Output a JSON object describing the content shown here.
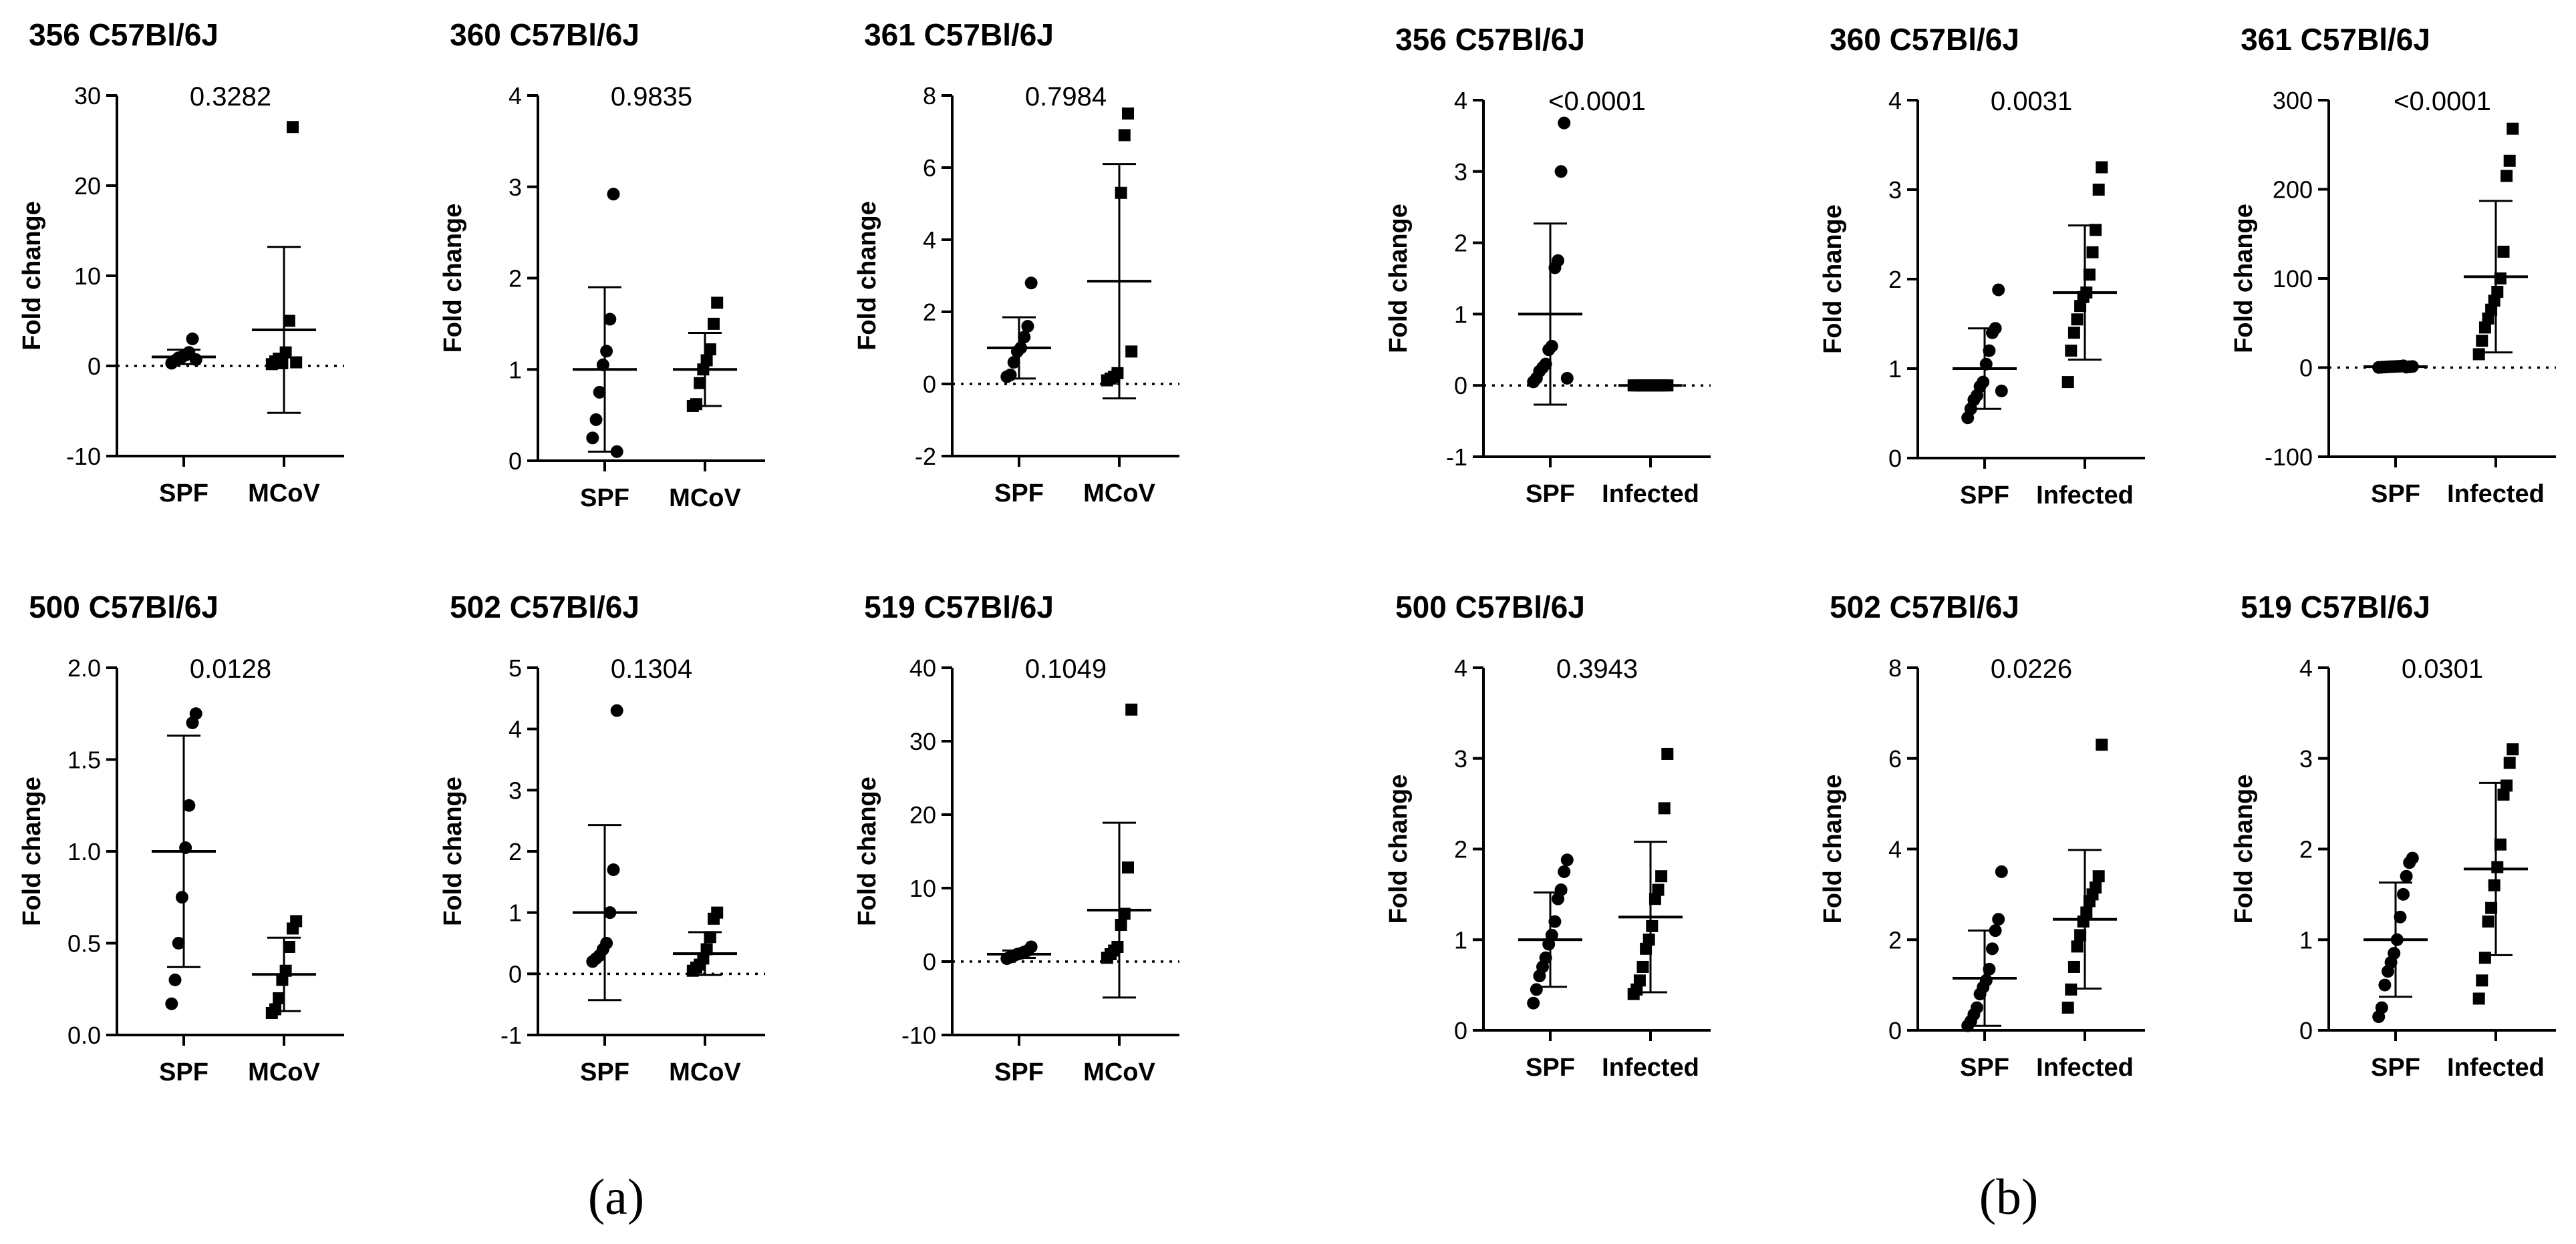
{
  "panel_labels": [
    "(a)",
    "(b)"
  ],
  "chart_data": [
    {
      "panel": "(a)",
      "type": "scatter",
      "title": "356 C57Bl/6J",
      "p_value": "0.3282",
      "ylabel": "Fold change",
      "categories": [
        "SPF",
        "MCoV"
      ],
      "ylim": [
        -10,
        30
      ],
      "yticks": [
        -10,
        0,
        10,
        20,
        30
      ],
      "zero_line": true,
      "groups": [
        {
          "name": "SPF",
          "marker": "circle",
          "mean": 1.0,
          "sd": 0.8,
          "values": [
            0.3,
            0.6,
            0.9,
            1.0,
            1.2,
            1.5,
            3.0,
            0.7
          ]
        },
        {
          "name": "MCoV",
          "marker": "square",
          "mean": 4.0,
          "sd": 9.2,
          "values": [
            0.2,
            0.5,
            0.8,
            0.3,
            1.5,
            5.0,
            26.5,
            0.4
          ]
        }
      ]
    },
    {
      "panel": "(a)",
      "type": "scatter",
      "title": "360 C57Bl/6J",
      "p_value": "0.9835",
      "ylabel": "Fold change",
      "categories": [
        "SPF",
        "MCoV"
      ],
      "ylim": [
        0,
        4
      ],
      "yticks": [
        0,
        1,
        2,
        3,
        4
      ],
      "zero_line": false,
      "groups": [
        {
          "name": "SPF",
          "marker": "circle",
          "mean": 1.0,
          "sd": 0.9,
          "values": [
            0.25,
            0.45,
            0.75,
            1.05,
            1.2,
            1.55,
            2.92,
            0.1
          ]
        },
        {
          "name": "MCoV",
          "marker": "square",
          "mean": 1.0,
          "sd": 0.4,
          "values": [
            0.6,
            0.62,
            0.85,
            1.0,
            1.1,
            1.22,
            1.5,
            1.73
          ]
        }
      ]
    },
    {
      "panel": "(a)",
      "type": "scatter",
      "title": "361 C57Bl/6J",
      "p_value": "0.7984",
      "ylabel": "Fold change",
      "categories": [
        "SPF",
        "MCoV"
      ],
      "ylim": [
        -2,
        8
      ],
      "yticks": [
        -2,
        0,
        2,
        4,
        6,
        8
      ],
      "zero_line": true,
      "groups": [
        {
          "name": "SPF",
          "marker": "circle",
          "mean": 1.0,
          "sd": 0.85,
          "values": [
            0.2,
            0.25,
            0.6,
            0.9,
            1.0,
            1.3,
            1.6,
            2.8
          ]
        },
        {
          "name": "MCoV",
          "marker": "square",
          "mean": 2.85,
          "sd": 3.25,
          "values": [
            0.1,
            0.15,
            0.2,
            0.3,
            5.3,
            6.9,
            7.5,
            0.9
          ]
        }
      ]
    },
    {
      "panel": "(a)",
      "type": "scatter",
      "title": "500 C57Bl/6J",
      "p_value": "0.0128",
      "ylabel": "Fold change",
      "categories": [
        "SPF",
        "MCoV"
      ],
      "ylim": [
        0.0,
        2.0
      ],
      "yticks": [
        0.0,
        0.5,
        1.0,
        1.5,
        2.0
      ],
      "zero_line": false,
      "groups": [
        {
          "name": "SPF",
          "marker": "circle",
          "mean": 1.0,
          "sd": 0.63,
          "values": [
            0.17,
            0.3,
            0.5,
            0.75,
            1.02,
            1.25,
            1.7,
            1.75
          ]
        },
        {
          "name": "MCoV",
          "marker": "square",
          "mean": 0.33,
          "sd": 0.2,
          "values": [
            0.12,
            0.14,
            0.2,
            0.3,
            0.35,
            0.48,
            0.58,
            0.62
          ]
        }
      ]
    },
    {
      "panel": "(a)",
      "type": "scatter",
      "title": "502 C57Bl/6J",
      "p_value": "0.1304",
      "ylabel": "Fold change",
      "categories": [
        "SPF",
        "MCoV"
      ],
      "ylim": [
        -1,
        5
      ],
      "yticks": [
        -1,
        0,
        1,
        2,
        3,
        4,
        5
      ],
      "zero_line": true,
      "groups": [
        {
          "name": "SPF",
          "marker": "circle",
          "mean": 1.0,
          "sd": 1.43,
          "values": [
            0.2,
            0.25,
            0.3,
            0.4,
            0.5,
            1.0,
            1.7,
            4.3
          ]
        },
        {
          "name": "MCoV",
          "marker": "square",
          "mean": 0.33,
          "sd": 0.35,
          "values": [
            0.05,
            0.1,
            0.15,
            0.25,
            0.4,
            0.6,
            0.9,
            1.0
          ]
        }
      ]
    },
    {
      "panel": "(a)",
      "type": "scatter",
      "title": "519 C57Bl/6J",
      "p_value": "0.1049",
      "ylabel": "Fold change",
      "categories": [
        "SPF",
        "MCoV"
      ],
      "ylim": [
        -10,
        40
      ],
      "yticks": [
        -10,
        0,
        10,
        20,
        30,
        40
      ],
      "zero_line": true,
      "groups": [
        {
          "name": "SPF",
          "marker": "circle",
          "mean": 1.0,
          "sd": 0.5,
          "values": [
            0.4,
            0.6,
            0.8,
            1.0,
            1.1,
            1.3,
            1.5,
            2.0
          ]
        },
        {
          "name": "MCoV",
          "marker": "square",
          "mean": 7.0,
          "sd": 11.9,
          "values": [
            0.5,
            1.0,
            1.5,
            2.0,
            5.0,
            6.5,
            12.8,
            34.3
          ]
        }
      ]
    },
    {
      "panel": "(b)",
      "type": "scatter",
      "title": "356 C57Bl/6J",
      "p_value": "<0.0001",
      "ylabel": "Fold change",
      "categories": [
        "SPF",
        "Infected"
      ],
      "ylim": [
        -1,
        4
      ],
      "yticks": [
        -1,
        0,
        1,
        2,
        3,
        4
      ],
      "zero_line": true,
      "groups": [
        {
          "name": "SPF",
          "marker": "circle",
          "mean": 1.0,
          "sd": 1.27,
          "values": [
            0.05,
            0.1,
            0.2,
            0.25,
            0.3,
            0.5,
            0.55,
            1.65,
            1.75,
            3.0,
            3.68,
            0.1
          ]
        },
        {
          "name": "Infected",
          "marker": "square",
          "mean": 0.0,
          "sd": 0.0,
          "values": [
            0.0,
            0.0,
            0.0,
            0.0,
            0.0,
            0.0,
            0.0,
            0.0,
            0.0,
            0.0,
            0.0,
            0.0
          ]
        }
      ]
    },
    {
      "panel": "(b)",
      "type": "scatter",
      "title": "360 C57Bl/6J",
      "p_value": "0.0031",
      "ylabel": "Fold change",
      "categories": [
        "SPF",
        "Infected"
      ],
      "ylim": [
        0,
        4
      ],
      "yticks": [
        0,
        1,
        2,
        3,
        4
      ],
      "zero_line": false,
      "groups": [
        {
          "name": "SPF",
          "marker": "circle",
          "mean": 1.0,
          "sd": 0.45,
          "values": [
            0.45,
            0.55,
            0.65,
            0.7,
            0.8,
            0.85,
            1.05,
            1.2,
            1.4,
            1.45,
            1.88,
            0.75
          ]
        },
        {
          "name": "Infected",
          "marker": "square",
          "mean": 1.85,
          "sd": 0.75,
          "values": [
            0.85,
            1.2,
            1.4,
            1.55,
            1.7,
            1.8,
            1.85,
            2.05,
            2.3,
            2.55,
            3.0,
            3.25
          ]
        }
      ]
    },
    {
      "panel": "(b)",
      "type": "scatter",
      "title": "361 C57Bl/6J",
      "p_value": "<0.0001",
      "ylabel": "Fold change",
      "categories": [
        "SPF",
        "Infected"
      ],
      "ylim": [
        -100,
        300
      ],
      "yticks": [
        -100,
        0,
        100,
        200,
        300
      ],
      "zero_line": true,
      "groups": [
        {
          "name": "SPF",
          "marker": "circle",
          "mean": 1.0,
          "sd": 0.8,
          "values": [
            0.2,
            0.4,
            0.6,
            0.8,
            1.0,
            1.1,
            1.3,
            1.5,
            2.0,
            0.5,
            0.9,
            1.2
          ]
        },
        {
          "name": "Infected",
          "marker": "square",
          "mean": 102,
          "sd": 85,
          "values": [
            15,
            30,
            45,
            55,
            65,
            75,
            85,
            100,
            130,
            215,
            232,
            268
          ]
        }
      ]
    },
    {
      "panel": "(b)",
      "type": "scatter",
      "title": "500 C57Bl/6J",
      "p_value": "0.3943",
      "ylabel": "Fold change",
      "categories": [
        "SPF",
        "Infected"
      ],
      "ylim": [
        0,
        4
      ],
      "yticks": [
        0,
        1,
        2,
        3,
        4
      ],
      "zero_line": false,
      "groups": [
        {
          "name": "SPF",
          "marker": "circle",
          "mean": 1.0,
          "sd": 0.52,
          "values": [
            0.3,
            0.45,
            0.6,
            0.7,
            0.8,
            0.95,
            1.05,
            1.2,
            1.45,
            1.55,
            1.75,
            1.88
          ]
        },
        {
          "name": "Infected",
          "marker": "square",
          "mean": 1.25,
          "sd": 0.83,
          "values": [
            0.4,
            0.45,
            0.55,
            0.7,
            0.9,
            1.0,
            1.15,
            1.45,
            1.55,
            1.7,
            2.45,
            3.05
          ]
        }
      ]
    },
    {
      "panel": "(b)",
      "type": "scatter",
      "title": "502 C57Bl/6J",
      "p_value": "0.0226",
      "ylabel": "Fold change",
      "categories": [
        "SPF",
        "Infected"
      ],
      "ylim": [
        0,
        8
      ],
      "yticks": [
        0,
        2,
        4,
        6,
        8
      ],
      "zero_line": false,
      "groups": [
        {
          "name": "SPF",
          "marker": "circle",
          "mean": 1.15,
          "sd": 1.05,
          "values": [
            0.1,
            0.2,
            0.35,
            0.5,
            0.8,
            0.95,
            1.1,
            1.35,
            1.8,
            2.2,
            2.45,
            3.5
          ]
        },
        {
          "name": "Infected",
          "marker": "square",
          "mean": 2.45,
          "sd": 1.53,
          "values": [
            0.5,
            0.9,
            1.4,
            1.85,
            2.1,
            2.4,
            2.6,
            2.85,
            3.0,
            3.15,
            3.4,
            6.3
          ]
        }
      ]
    },
    {
      "panel": "(b)",
      "type": "scatter",
      "title": "519 C57Bl/6J",
      "p_value": "0.0301",
      "ylabel": "Fold change",
      "categories": [
        "SPF",
        "Infected"
      ],
      "ylim": [
        0,
        4
      ],
      "yticks": [
        0,
        1,
        2,
        3,
        4
      ],
      "zero_line": false,
      "groups": [
        {
          "name": "SPF",
          "marker": "circle",
          "mean": 1.0,
          "sd": 0.63,
          "values": [
            0.15,
            0.25,
            0.5,
            0.65,
            0.75,
            0.85,
            1.0,
            1.25,
            1.5,
            1.7,
            1.85,
            1.9
          ]
        },
        {
          "name": "Infected",
          "marker": "square",
          "mean": 1.78,
          "sd": 0.95,
          "values": [
            0.35,
            0.55,
            0.8,
            1.2,
            1.35,
            1.6,
            1.8,
            2.05,
            2.6,
            2.7,
            2.95,
            3.1
          ]
        }
      ]
    }
  ]
}
